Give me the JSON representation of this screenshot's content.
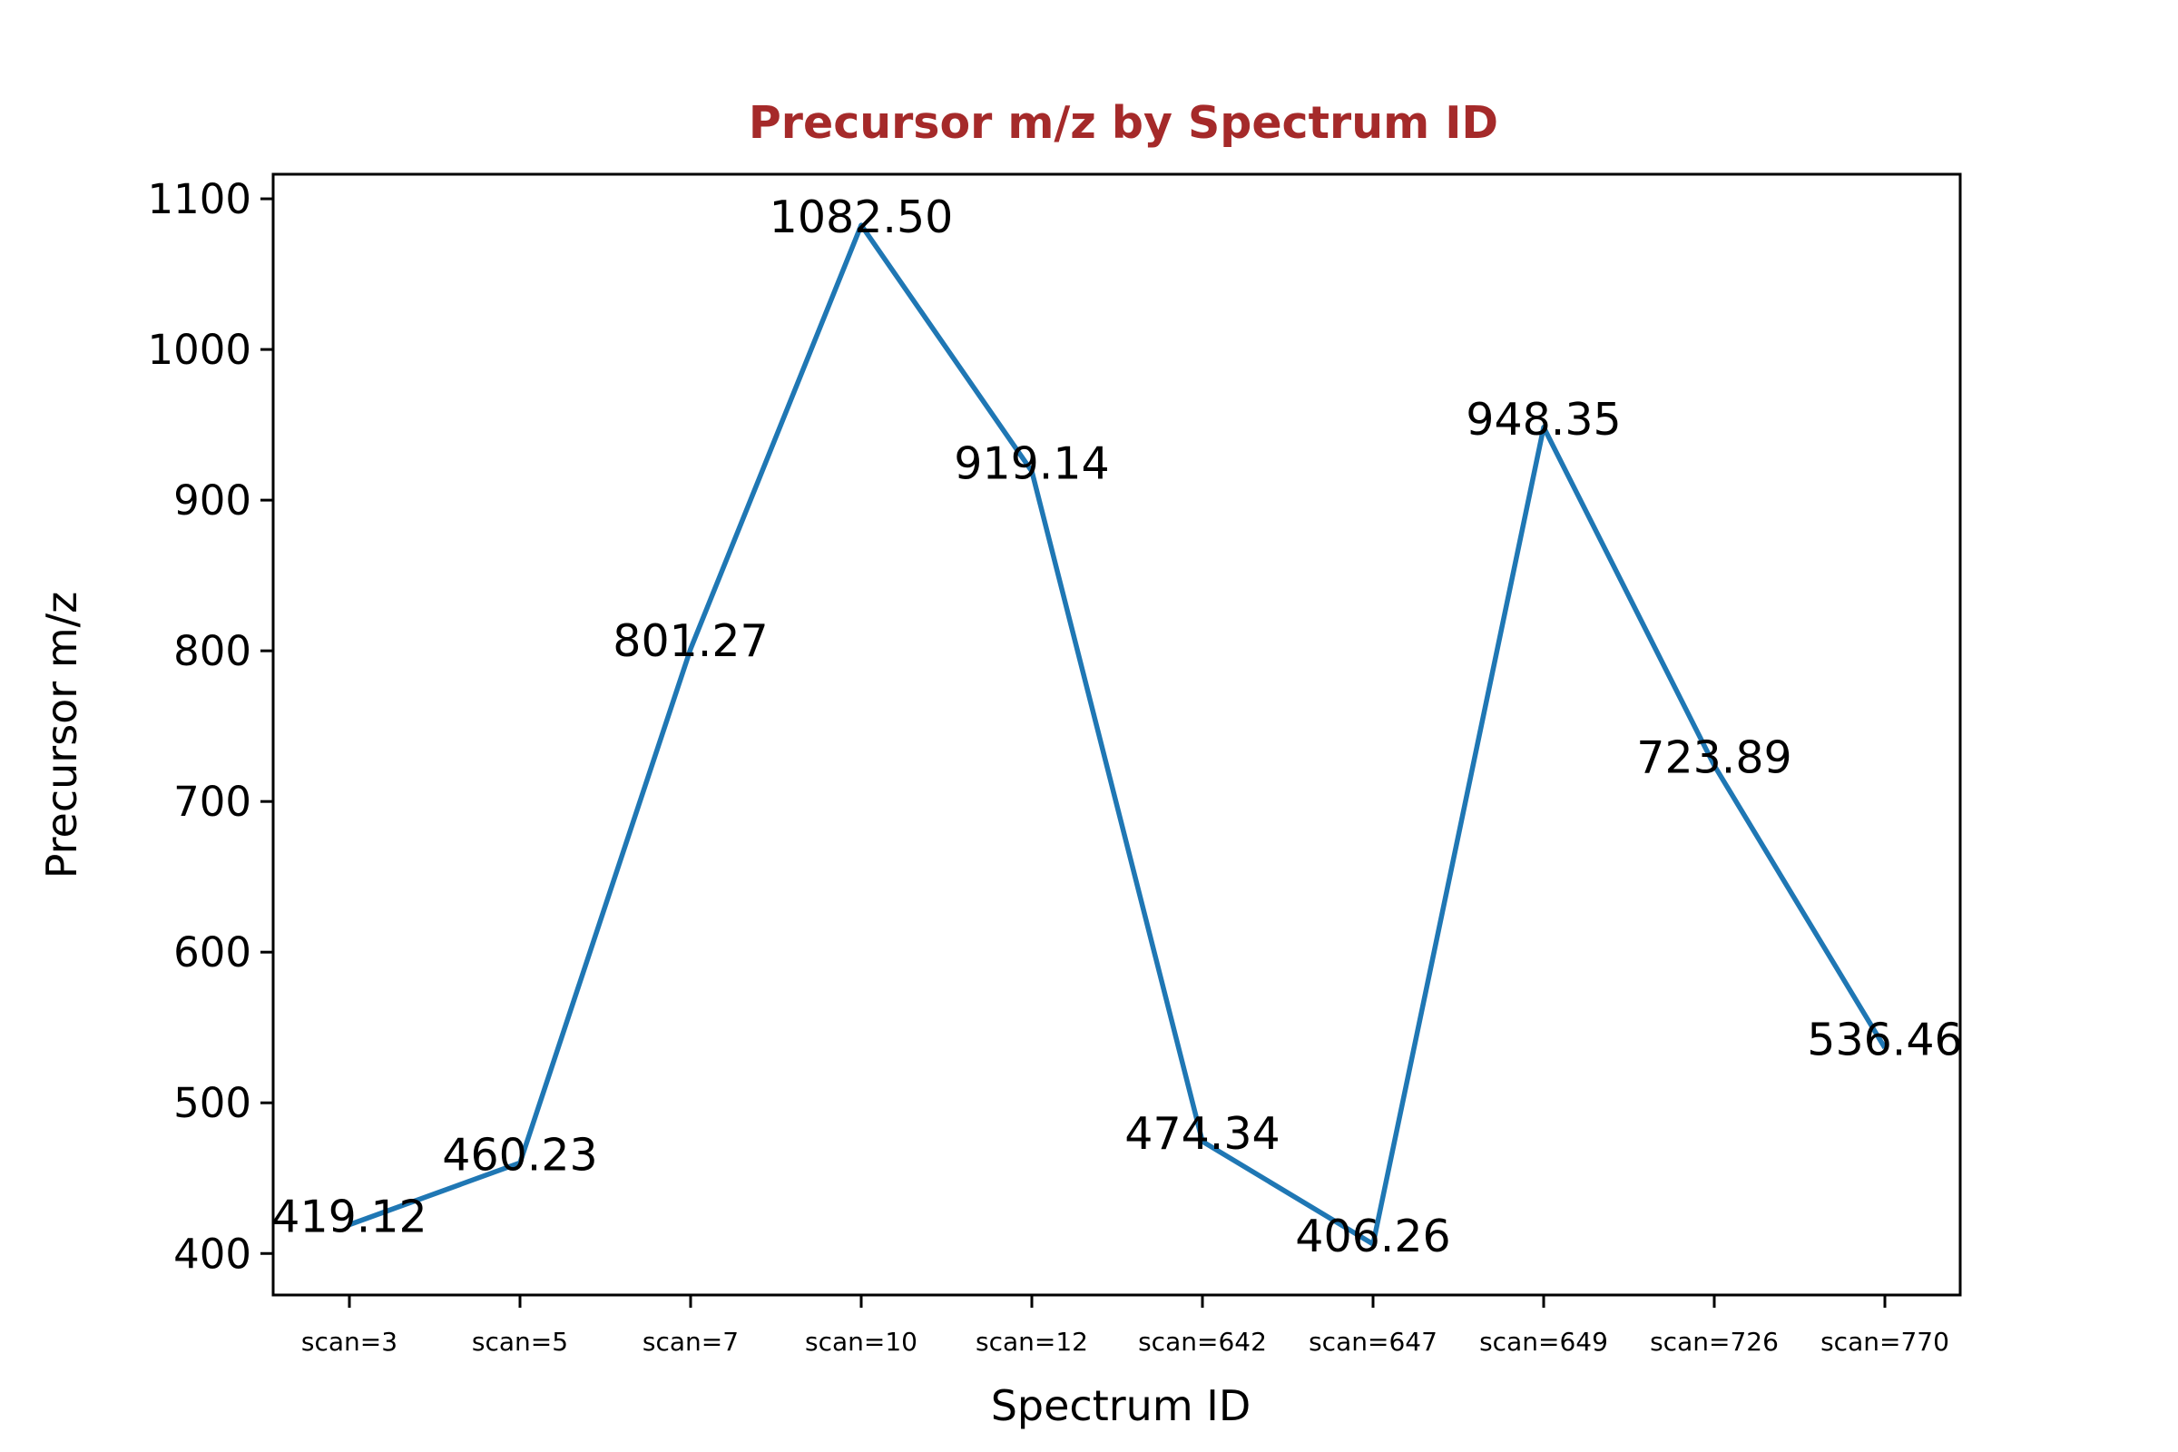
{
  "chart_data": {
    "type": "line",
    "title": "Precursor m/z by Spectrum ID",
    "xlabel": "Spectrum ID",
    "ylabel": "Precursor m/z",
    "categories": [
      "scan=3",
      "scan=5",
      "scan=7",
      "scan=10",
      "scan=12",
      "scan=642",
      "scan=647",
      "scan=649",
      "scan=726",
      "scan=770"
    ],
    "series": [
      {
        "name": "Precursor m/z",
        "values": [
          419.12,
          460.23,
          801.27,
          1082.5,
          919.14,
          474.34,
          406.26,
          948.35,
          723.89,
          536.46
        ],
        "labels": [
          "419.12",
          "460.23",
          "801.27",
          "1082.50",
          "919.14",
          "474.34",
          "406.26",
          "948.35",
          "723.89",
          "536.46"
        ],
        "color": "#1f77b4"
      }
    ],
    "yticks": [
      400,
      500,
      600,
      700,
      800,
      900,
      1000,
      1100
    ],
    "ylim": [
      372.45,
      1116.3
    ],
    "grid": false,
    "legend": null,
    "title_color": "#a52a2a"
  }
}
